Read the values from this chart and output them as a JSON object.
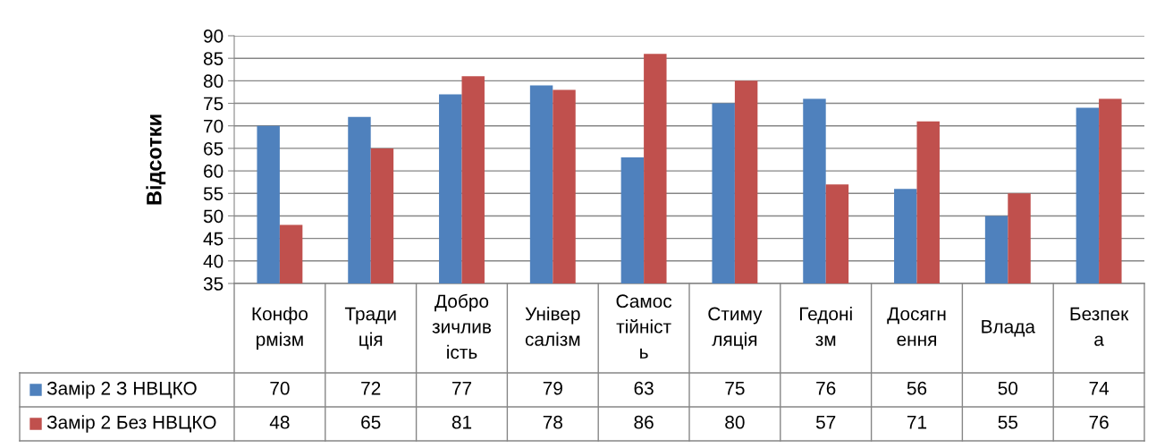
{
  "chart_data": {
    "type": "bar",
    "ylabel": "Відсотки",
    "categories": [
      "Конфо\nрмізм",
      "Тради\nція",
      "Добро\nзичлив\nість",
      "Універ\nсалізм",
      "Самос\nтійніст\nь",
      "Стиму\nляція",
      "Гедоні\nзм",
      "Досягн\nення",
      "Влада",
      "Безпек\nа"
    ],
    "series": [
      {
        "name": "Замір 2 З НВЦКО",
        "color": "#4f81bd",
        "values": [
          70,
          72,
          77,
          79,
          63,
          75,
          76,
          56,
          50,
          74
        ]
      },
      {
        "name": "Замір 2 Без НВЦКО",
        "color": "#c0504d",
        "values": [
          48,
          65,
          81,
          78,
          86,
          80,
          57,
          71,
          55,
          76
        ]
      }
    ],
    "ylim": [
      35,
      90
    ],
    "yticks": [
      35,
      40,
      45,
      50,
      55,
      60,
      65,
      70,
      75,
      80,
      85,
      90
    ],
    "grid": "y",
    "data_labels": true,
    "legend": "bottom"
  }
}
